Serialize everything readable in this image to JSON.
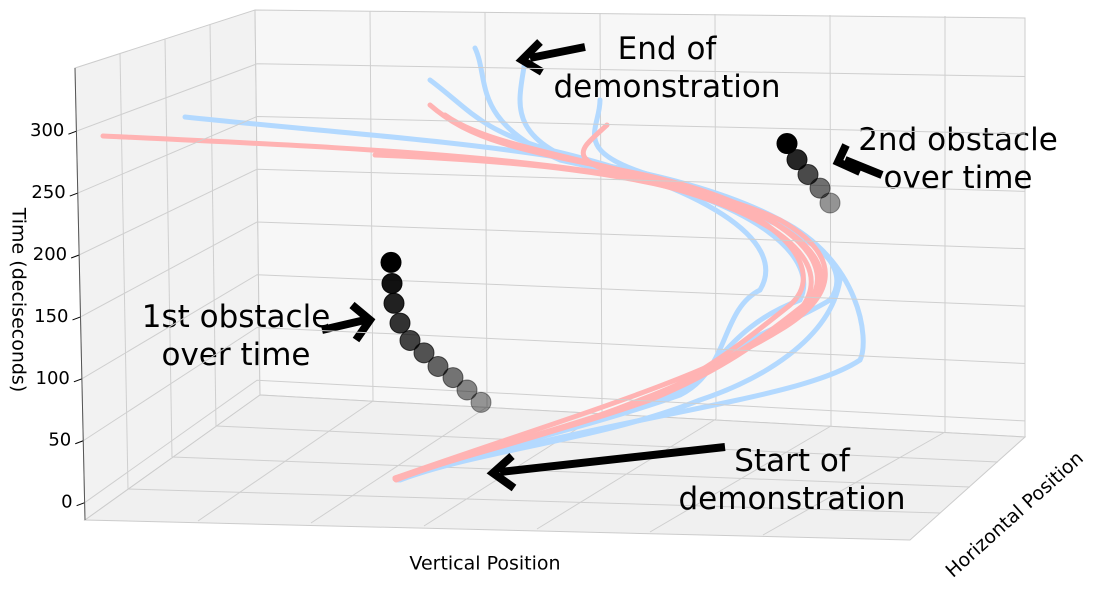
{
  "chart_data": {
    "type": "scatter3d",
    "zlabel": "Time (deciseconds)",
    "xlabel": "Vertical Position",
    "ylabel": "Horizontal Position",
    "zlim": [
      -14,
      351
    ],
    "zticks": [
      0,
      50,
      100,
      150,
      200,
      250,
      300
    ],
    "grid": true,
    "obstacles": [
      {
        "color": "#000000",
        "values": [
          194,
          177,
          161,
          145,
          131,
          121,
          110,
          101,
          91,
          81
        ]
      },
      {
        "color": "#000000",
        "values": [
          290,
          277,
          265,
          254,
          242
        ]
      }
    ],
    "annotations": [
      {
        "text": "End of\ndemonstration"
      },
      {
        "text": "2nd obstacle\nover time"
      },
      {
        "text": "1st obstacle\nover time"
      },
      {
        "text": "Start of\ndemonstration"
      }
    ]
  }
}
